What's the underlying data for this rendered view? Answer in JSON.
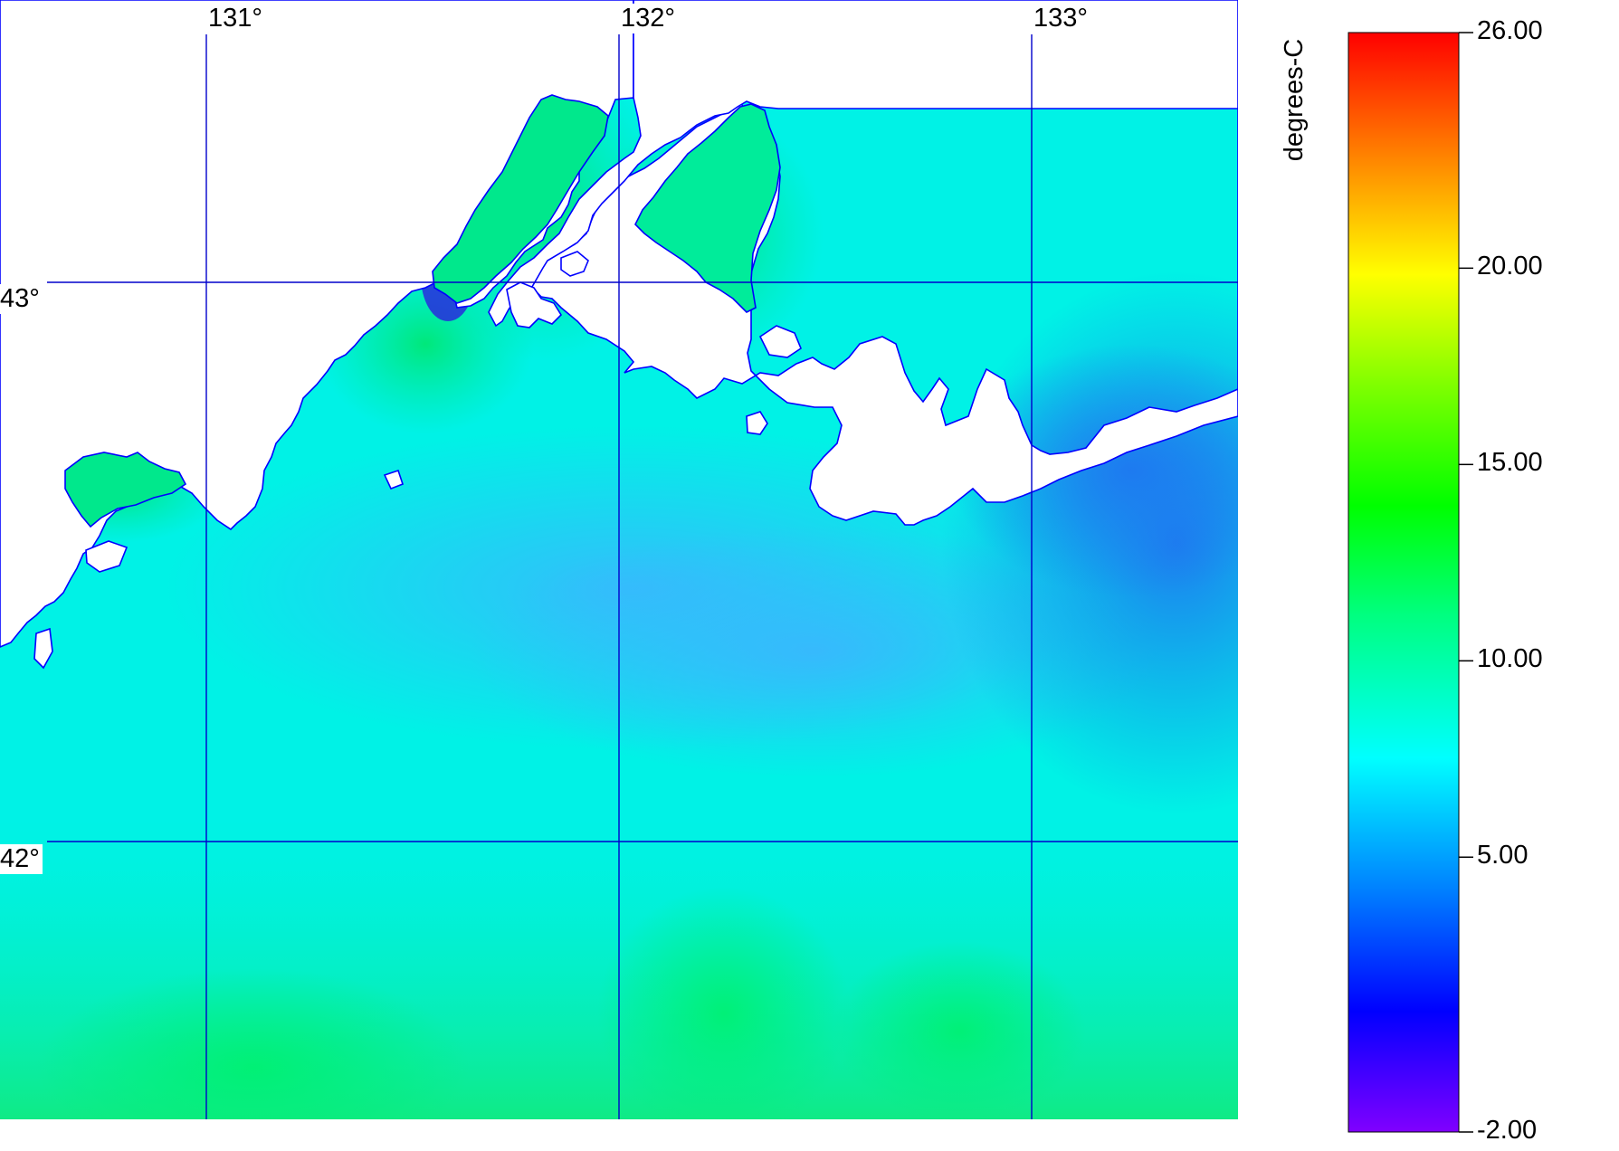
{
  "map": {
    "longitude_labels": [
      "131°",
      "132°",
      "133°"
    ],
    "latitude_labels": [
      "43°",
      "42°"
    ],
    "grid_color": "#0000cc",
    "coast_color": "#0000ff",
    "land_color": "#ffffff"
  },
  "colorbar": {
    "title": "degrees-C",
    "min": -2.0,
    "max": 26.0,
    "ticks": [
      "26.00",
      "20.00",
      "15.00",
      "10.00",
      "5.00",
      "-2.00"
    ],
    "tick_values": [
      26,
      20,
      15,
      10,
      5,
      -2
    ],
    "colors": [
      "#8000ff",
      "#0000ff",
      "#0080ff",
      "#00ffff",
      "#00ff80",
      "#00ff00",
      "#80ff00",
      "#ffff00",
      "#ff8000",
      "#ff0000"
    ]
  },
  "chart_data": {
    "type": "heatmap",
    "title": "",
    "colorbar_label": "degrees-C",
    "value_range": [
      -2.0,
      26.0
    ],
    "x_ticks": [
      "131°",
      "132°",
      "133°"
    ],
    "y_ticks": [
      "43°",
      "42°"
    ],
    "xlim_deg": [
      130.5,
      133.5
    ],
    "ylim_deg": [
      41.5,
      43.5
    ],
    "grid": true,
    "legend_placement": "right"
  }
}
